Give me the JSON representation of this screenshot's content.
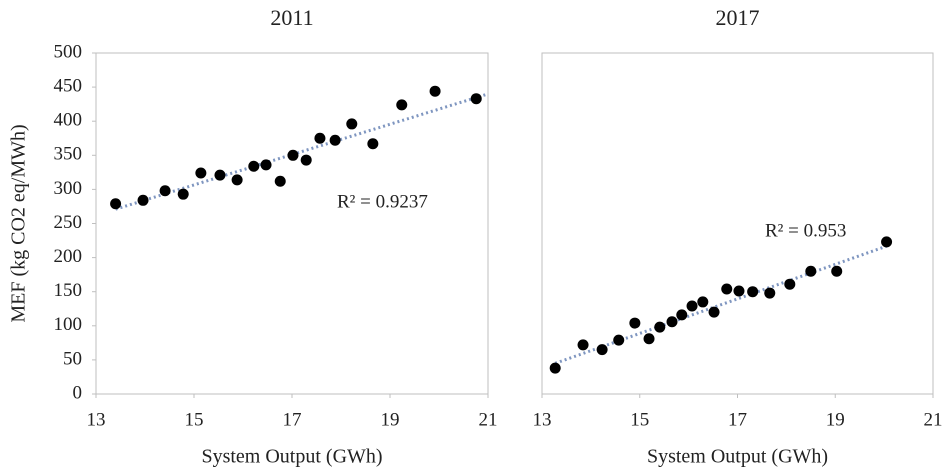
{
  "chart_data": [
    {
      "type": "scatter",
      "title": "2011",
      "xlabel": "System Output (GWh)",
      "ylabel": "MEF (kg CO2 eq/MWh)",
      "x": [
        13.4,
        13.96,
        14.41,
        14.78,
        15.14,
        15.53,
        15.88,
        16.22,
        16.47,
        16.76,
        17.02,
        17.29,
        17.57,
        17.88,
        18.22,
        18.65,
        19.24,
        19.92,
        20.76
      ],
      "values": [
        279,
        284,
        298,
        293,
        324,
        321,
        314,
        334,
        336,
        312,
        350,
        343,
        375,
        372,
        396,
        367,
        424,
        444,
        433
      ],
      "color": "#000000",
      "trendline": {
        "x": [
          13.4,
          21
        ],
        "y": [
          271,
          440
        ],
        "color": "#7f96c0"
      },
      "annotation": "R² = 0.9237",
      "xlim": [
        13,
        21
      ],
      "xticks": [
        13,
        15,
        17,
        19,
        21
      ],
      "ylim": [
        0,
        500
      ],
      "yticks": [
        0,
        50,
        100,
        150,
        200,
        250,
        300,
        350,
        400,
        450,
        500
      ]
    },
    {
      "type": "scatter",
      "title": "2017",
      "xlabel": "System Output (GWh)",
      "x": [
        13.27,
        13.84,
        14.23,
        14.57,
        14.9,
        15.19,
        15.41,
        15.66,
        15.86,
        16.07,
        16.29,
        16.52,
        16.78,
        17.03,
        17.31,
        17.66,
        18.07,
        18.5,
        19.03,
        20.05
      ],
      "values": [
        38,
        72,
        65,
        79,
        104,
        81,
        98,
        106,
        116,
        129,
        135,
        120,
        154,
        151,
        150,
        148,
        161,
        180,
        180,
        223
      ],
      "color": "#000000",
      "trendline": {
        "x": [
          13.27,
          20.1
        ],
        "y": [
          45,
          218
        ],
        "color": "#7f96c0"
      },
      "annotation": "R² = 0.953",
      "xlim": [
        13,
        21
      ],
      "xticks": [
        13,
        15,
        17,
        19,
        21
      ],
      "ylim": [
        0,
        500
      ]
    }
  ]
}
